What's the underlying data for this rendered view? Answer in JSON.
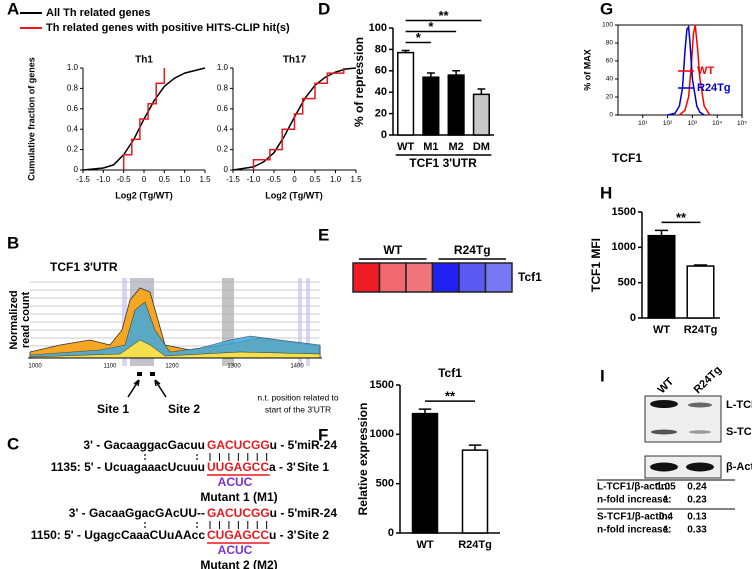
{
  "panel_labels": [
    "A",
    "B",
    "C",
    "D",
    "E",
    "F",
    "G",
    "H",
    "I"
  ],
  "chart_data": [
    {
      "type": "line",
      "title": "Th1",
      "x_label": "Log2 (Tg/WT)",
      "y_label": "Cumulative fraction of genes",
      "xlim": [
        -1.5,
        1.5
      ],
      "ylim": [
        0,
        1
      ],
      "xticks": [
        -1.5,
        {
          "value": -1,
          "label": "-1.0"
        },
        -0.5,
        0,
        0.5,
        {
          "value": 1,
          "label": "1.0"
        },
        1.5
      ],
      "yticks": [
        0,
        0.2,
        0.4,
        0.6,
        0.8,
        {
          "value": 1,
          "label": "1.0"
        }
      ],
      "legend": "top-left",
      "series": [
        {
          "name": "All Th related genes",
          "color": "#000000",
          "x": [
            -1.5,
            -1.0,
            -0.75,
            -0.5,
            -0.25,
            0,
            0.25,
            0.5,
            0.75,
            1.0,
            1.5
          ],
          "values": [
            0,
            0.02,
            0.05,
            0.15,
            0.3,
            0.5,
            0.68,
            0.82,
            0.9,
            0.95,
            1.0
          ]
        },
        {
          "name": "Th related genes with positive HITS-CLIP hit(s)",
          "color": "#e8191e",
          "x": [
            -0.5,
            -0.5,
            -0.3,
            -0.3,
            -0.1,
            -0.1,
            0.1,
            0.1,
            0.3,
            0.3,
            0.5,
            0.5
          ],
          "values": [
            0,
            0.15,
            0.15,
            0.3,
            0.3,
            0.5,
            0.5,
            0.65,
            0.65,
            0.85,
            0.85,
            1.0
          ]
        }
      ]
    },
    {
      "type": "line",
      "title": "Th17",
      "x_label": "Log2 (Tg/WT)",
      "xlim": [
        -1.5,
        1.5
      ],
      "ylim": [
        0,
        1
      ],
      "xticks": [
        -1.5,
        {
          "value": -1,
          "label": "-1.0"
        },
        -0.5,
        0,
        0.5,
        {
          "value": 1,
          "label": "1.0"
        },
        1.5
      ],
      "yticks": [
        0,
        0.2,
        0.4,
        0.6,
        0.8,
        {
          "value": 1,
          "label": "1.0"
        }
      ],
      "series": [
        {
          "color": "#000000",
          "x": [
            -1.5,
            -1.0,
            -0.75,
            -0.5,
            -0.25,
            0,
            0.25,
            0.5,
            0.75,
            1.0,
            1.25,
            1.5
          ],
          "values": [
            0,
            0.03,
            0.08,
            0.17,
            0.33,
            0.52,
            0.7,
            0.83,
            0.91,
            0.96,
            0.99,
            1.0
          ]
        },
        {
          "color": "#e8191e",
          "x": [
            -1.0,
            -1.0,
            -0.6,
            -0.6,
            -0.3,
            -0.3,
            0,
            0,
            0.2,
            0.2,
            0.5,
            0.5,
            0.8,
            0.8,
            1.2,
            1.2
          ],
          "values": [
            0,
            0.1,
            0.1,
            0.2,
            0.2,
            0.4,
            0.4,
            0.55,
            0.55,
            0.7,
            0.7,
            0.85,
            0.85,
            0.95,
            0.95,
            1.0
          ]
        }
      ]
    },
    {
      "type": "bar",
      "y_label": "% of repression",
      "x_label": "TCF1 3'UTR",
      "categories": [
        "WT",
        "M1",
        "M2",
        "DM"
      ],
      "values": [
        77,
        54,
        56,
        38
      ],
      "errors": [
        2,
        4,
        4,
        5
      ],
      "colors": [
        "#ffffff",
        "#000000",
        "#000000",
        "#c8c8c8"
      ],
      "ylim": [
        0,
        100
      ],
      "yticks": [
        0,
        20,
        40,
        60,
        80,
        100
      ],
      "significance": [
        "*",
        "*",
        "**"
      ]
    },
    {
      "type": "bar",
      "title": "Tcf1",
      "y_label": "Relative expression",
      "categories": [
        "WT",
        "R24Tg"
      ],
      "values": [
        1210,
        840
      ],
      "errors": [
        45,
        50
      ],
      "colors": [
        "#000000",
        "#ffffff"
      ],
      "ylim": [
        0,
        1500
      ],
      "yticks": [
        0,
        500,
        1000,
        1500
      ],
      "significance": [
        "**"
      ]
    },
    {
      "type": "line",
      "log_x": true,
      "frame": true,
      "x_label": "TCF1",
      "y_label": "% of MAX",
      "xlim": [
        1,
        100000
      ],
      "ylim": [
        0,
        100
      ],
      "xticks": [
        {
          "value": 10,
          "label": "10¹"
        },
        {
          "value": 100,
          "label": "10²"
        },
        {
          "value": 1000,
          "label": "10³"
        },
        {
          "value": 10000,
          "label": "10⁴"
        },
        {
          "value": 100000,
          "label": "10⁵"
        }
      ],
      "yticks": [
        0,
        20,
        40,
        60,
        80,
        100
      ],
      "legend": "right",
      "series": [
        {
          "name": "WT",
          "color": "#ff0000",
          "x": [
            300,
            500,
            700,
            900,
            1100,
            1300,
            1600,
            2000,
            3000,
            5000
          ],
          "values": [
            0,
            5,
            20,
            55,
            90,
            100,
            75,
            40,
            10,
            0
          ]
        },
        {
          "name": "R24Tg",
          "color": "#0000cc",
          "x": [
            100,
            200,
            300,
            400,
            500,
            600,
            700,
            800,
            1000,
            1500,
            2000,
            3000
          ],
          "values": [
            0,
            2,
            10,
            30,
            70,
            95,
            98,
            80,
            40,
            10,
            3,
            0
          ]
        }
      ]
    },
    {
      "type": "bar",
      "y_label": "TCF1 MFI",
      "categories": [
        "WT",
        "R24Tg"
      ],
      "values": [
        1165,
        735
      ],
      "errors": [
        75,
        15
      ],
      "colors": [
        "#000000",
        "#ffffff"
      ],
      "ylim": [
        0,
        1500
      ],
      "yticks": [
        0,
        500,
        1000,
        1500
      ],
      "significance": [
        "**"
      ]
    }
  ],
  "panel_b": {
    "title": "TCF1 3'UTR",
    "y_label": [
      "Normalized",
      "read count"
    ],
    "x_ticks": [
      "1000",
      "1100",
      "1200",
      "1300",
      "1400"
    ],
    "sites": [
      "Site 1",
      "Site 2"
    ],
    "note": [
      "n.t. position related to",
      "start of the 3'UTR"
    ]
  },
  "panel_c": {
    "blocks": [
      {
        "mirna": {
          "prefix": "3' - GacaaggacGacuu",
          "seed": "GACUCGG",
          "suffix": "u - 5'",
          "name": "miR-24"
        },
        "site": {
          "prefix": "1135: 5' - UcuagaaacUcuuu",
          "seed": "UUGAGCC",
          "suffix": "a - 3'",
          "name": "Site 1"
        },
        "mutation": "ACUC",
        "mutant": "Mutant 1 (M1)"
      },
      {
        "mirna": {
          "prefix": "3' - GacaaGgacGAcUU--",
          "seed": "GACUCGG",
          "suffix": "u - 5'",
          "name": "miR-24"
        },
        "site": {
          "prefix": "1150: 5' - UgagcCaaaCUuAAcc",
          "seed": "CUGAGCC",
          "suffix": "u - 3'",
          "name": "Site 2"
        },
        "mutation": "ACUC",
        "mutant": "Mutant 2 (M2)"
      }
    ]
  },
  "panel_e": {
    "groups": [
      "WT",
      "R24Tg"
    ],
    "row": "Tcf1",
    "cells": [
      "#ee1c24",
      "#f2686e",
      "#f0767c",
      "#2020f0",
      "#5a5af2",
      "#7878f2"
    ]
  },
  "panel_i": {
    "lanes": [
      "WT",
      "R24Tg"
    ],
    "bands": [
      "L-TCF1",
      "S-TCF1",
      "β-Actin"
    ],
    "table": {
      "rows": [
        [
          "L-TCF1/β-actin:",
          "1.05",
          "0.24"
        ],
        [
          "n-fold increase:",
          "1",
          "0.23"
        ],
        [
          "S-TCF1/β-actin:",
          "0.4",
          "0.13"
        ],
        [
          "n-fold increase:",
          "1",
          "0.33"
        ]
      ]
    }
  }
}
